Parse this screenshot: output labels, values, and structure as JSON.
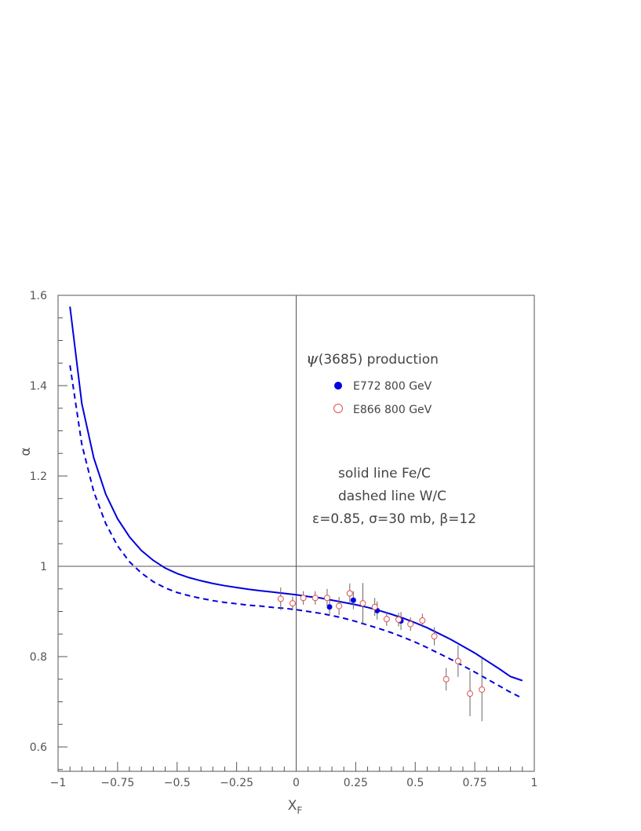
{
  "chart_data": {
    "type": "scatter",
    "xlabel": "X",
    "xlabel_sub": "F",
    "ylabel": "α",
    "xlim": [
      -1,
      1
    ],
    "ylim": [
      0.55,
      1.6
    ],
    "x_ticks": [
      -1,
      -0.75,
      -0.5,
      -0.25,
      0,
      0.25,
      0.5,
      0.75,
      1
    ],
    "x_tick_labels": [
      "−1",
      "−0.75",
      "−0.5",
      "−0.25",
      "0",
      "0.25",
      "0.5",
      "0.75",
      "1"
    ],
    "y_ticks": [
      0.6,
      0.8,
      1,
      1.2,
      1.4,
      1.6
    ],
    "y_tick_labels": [
      "0.6",
      "0.8",
      "1",
      "1.2",
      "1.4",
      "1.6"
    ],
    "reference_lines": {
      "x": 0,
      "y": 1
    },
    "grid": false,
    "annotations": {
      "title_symbol": "ψ",
      "title_rest": "(3685) production",
      "line1": "solid line  Fe/C",
      "line2": "dashed line  W/C",
      "line3": "ε=0.85, σ=30 mb, β=12"
    },
    "legend": {
      "position": "top-right",
      "entries": [
        {
          "marker": "filled-circle",
          "label": "E772   800 GeV",
          "color": "#0000e0"
        },
        {
          "marker": "open-circle",
          "label": "E866   800 GeV",
          "color": "#e05050"
        }
      ]
    },
    "series": [
      {
        "name": "Fe/C",
        "kind": "line",
        "style": "solid",
        "color": "#0000e0",
        "x": [
          -0.95,
          -0.9,
          -0.85,
          -0.8,
          -0.75,
          -0.7,
          -0.65,
          -0.6,
          -0.55,
          -0.5,
          -0.45,
          -0.4,
          -0.35,
          -0.3,
          -0.25,
          -0.2,
          -0.15,
          -0.1,
          -0.05,
          0,
          0.05,
          0.1,
          0.15,
          0.2,
          0.25,
          0.3,
          0.35,
          0.4,
          0.45,
          0.5,
          0.55,
          0.6,
          0.65,
          0.7,
          0.75,
          0.8,
          0.85,
          0.9,
          0.95
        ],
        "y": [
          1.575,
          1.36,
          1.24,
          1.16,
          1.105,
          1.065,
          1.035,
          1.013,
          0.996,
          0.984,
          0.975,
          0.968,
          0.962,
          0.957,
          0.953,
          0.949,
          0.946,
          0.943,
          0.94,
          0.937,
          0.933,
          0.93,
          0.925,
          0.92,
          0.915,
          0.909,
          0.902,
          0.894,
          0.885,
          0.875,
          0.864,
          0.851,
          0.838,
          0.823,
          0.808,
          0.791,
          0.774,
          0.756,
          0.747
        ]
      },
      {
        "name": "W/C",
        "kind": "line",
        "style": "dashed",
        "color": "#0000e0",
        "x": [
          -0.95,
          -0.9,
          -0.85,
          -0.8,
          -0.75,
          -0.7,
          -0.65,
          -0.6,
          -0.55,
          -0.5,
          -0.45,
          -0.4,
          -0.35,
          -0.3,
          -0.25,
          -0.2,
          -0.15,
          -0.1,
          -0.05,
          0,
          0.05,
          0.1,
          0.15,
          0.2,
          0.25,
          0.3,
          0.35,
          0.4,
          0.45,
          0.5,
          0.55,
          0.6,
          0.65,
          0.7,
          0.75,
          0.8,
          0.85,
          0.9,
          0.95
        ],
        "y": [
          1.445,
          1.27,
          1.165,
          1.095,
          1.045,
          1.01,
          0.985,
          0.966,
          0.952,
          0.942,
          0.935,
          0.929,
          0.924,
          0.92,
          0.917,
          0.914,
          0.912,
          0.909,
          0.907,
          0.904,
          0.9,
          0.896,
          0.891,
          0.885,
          0.878,
          0.87,
          0.862,
          0.853,
          0.843,
          0.832,
          0.82,
          0.807,
          0.794,
          0.78,
          0.766,
          0.751,
          0.736,
          0.721,
          0.708
        ]
      },
      {
        "name": "E772   800 GeV",
        "kind": "points",
        "marker": "filled-circle",
        "color": "#0000e0",
        "points": [
          {
            "x": 0.14,
            "y": 0.91,
            "err": 0.02
          },
          {
            "x": 0.24,
            "y": 0.925,
            "err": 0.02
          },
          {
            "x": 0.34,
            "y": 0.902,
            "err": 0.02
          },
          {
            "x": 0.44,
            "y": 0.879,
            "err": 0.02
          }
        ]
      },
      {
        "name": "E866   800 GeV",
        "kind": "points",
        "marker": "open-circle",
        "color": "#e05050",
        "points": [
          {
            "x": -0.065,
            "y": 0.928,
            "err": 0.025
          },
          {
            "x": -0.015,
            "y": 0.918,
            "err": 0.015
          },
          {
            "x": 0.03,
            "y": 0.93,
            "err": 0.015
          },
          {
            "x": 0.08,
            "y": 0.93,
            "err": 0.015
          },
          {
            "x": 0.13,
            "y": 0.93,
            "err": 0.02
          },
          {
            "x": 0.18,
            "y": 0.912,
            "err": 0.02
          },
          {
            "x": 0.225,
            "y": 0.94,
            "err": 0.022
          },
          {
            "x": 0.28,
            "y": 0.918,
            "err": 0.045
          },
          {
            "x": 0.33,
            "y": 0.91,
            "err": 0.02
          },
          {
            "x": 0.38,
            "y": 0.883,
            "err": 0.015
          },
          {
            "x": 0.43,
            "y": 0.882,
            "err": 0.015
          },
          {
            "x": 0.48,
            "y": 0.872,
            "err": 0.015
          },
          {
            "x": 0.53,
            "y": 0.88,
            "err": 0.015
          },
          {
            "x": 0.58,
            "y": 0.845,
            "err": 0.02
          },
          {
            "x": 0.63,
            "y": 0.75,
            "err": 0.025
          },
          {
            "x": 0.68,
            "y": 0.79,
            "err": 0.035
          },
          {
            "x": 0.73,
            "y": 0.718,
            "err": 0.05
          },
          {
            "x": 0.78,
            "y": 0.727,
            "err": 0.07
          }
        ]
      }
    ]
  }
}
